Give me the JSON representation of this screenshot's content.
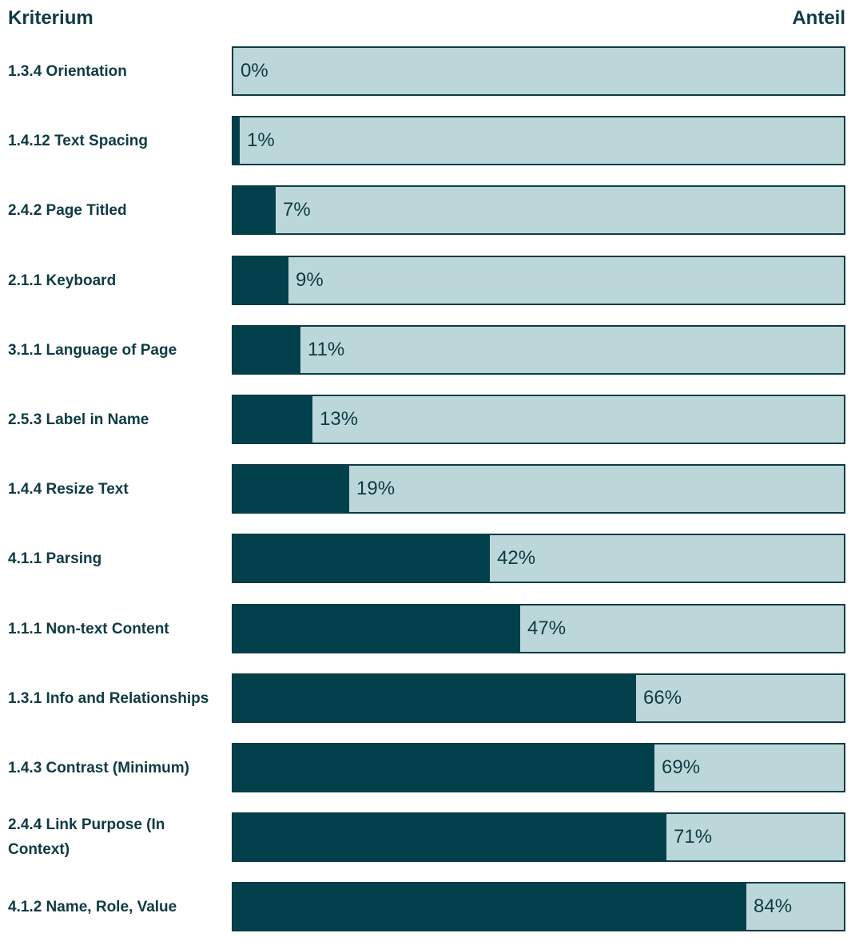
{
  "header": {
    "left": "Kriterium",
    "right": "Anteil"
  },
  "colors": {
    "fill": "#02414c",
    "track": "#bcd7da",
    "border": "#0e3b43",
    "text": "#0e3b43"
  },
  "chart_data": {
    "type": "bar",
    "orientation": "horizontal",
    "xlim": [
      0,
      100
    ],
    "unit": "%",
    "categories": [
      "1.3.4 Orientation",
      "1.4.12 Text Spacing",
      "2.4.2 Page Titled",
      "2.1.1 Keyboard",
      "3.1.1 Language of Page",
      "2.5.3 Label in Name",
      "1.4.4 Resize Text",
      "4.1.1 Parsing",
      "1.1.1 Non-text Content",
      "1.3.1 Info and Relationships",
      "1.4.3 Contrast (Minimum)",
      "2.4.4 Link Purpose (In Context)",
      "4.1.2 Name, Role, Value"
    ],
    "values": [
      0,
      1,
      7,
      9,
      11,
      13,
      19,
      42,
      47,
      66,
      69,
      71,
      84
    ],
    "labels": [
      "0%",
      "1%",
      "7%",
      "9%",
      "11%",
      "13%",
      "19%",
      "42%",
      "47%",
      "66%",
      "69%",
      "71%",
      "84%"
    ]
  }
}
